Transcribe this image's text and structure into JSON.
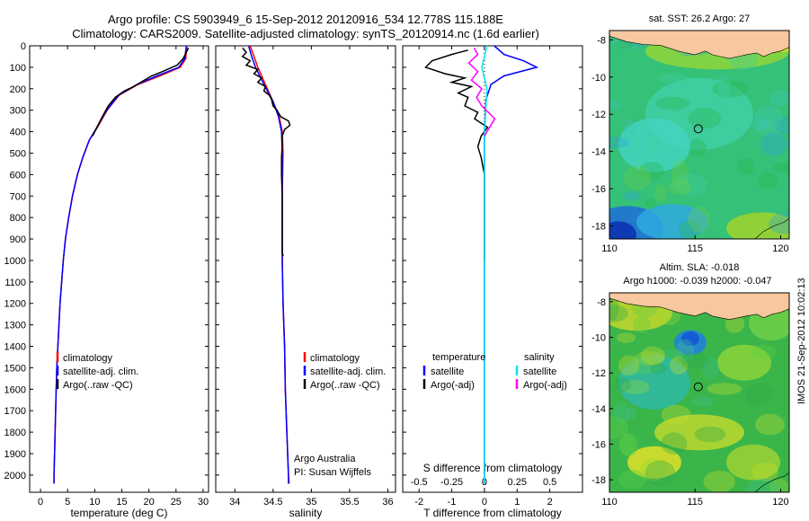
{
  "header": {
    "title_line1": "Argo profile: CS 5903949_6 15-Sep-2012 20120916_534 12.778S 115.188E",
    "title_line2": "Climatology: CARS2009. Satellite-adjusted climatology: synTS_20120914.nc (1.6d earlier)"
  },
  "side_stamp": "IMOS 21-Sep-2012 10:02:13",
  "colors": {
    "climatology": "#ff0000",
    "satellite": "#0000ff",
    "argo": "#000000",
    "sal_satellite": "#00e5ee",
    "sal_argo": "#ff00ff",
    "land": "#f7c79f",
    "sea_mid": "#2db84a"
  },
  "chart_data": [
    {
      "type": "line",
      "name": "temperature-profile",
      "xlabel": "temperature (deg C)",
      "ylabel": "",
      "xlim": [
        -2,
        31
      ],
      "ylim": [
        2080,
        0
      ],
      "xticks": [
        0,
        5,
        10,
        15,
        20,
        25,
        30
      ],
      "yticks": [
        0,
        100,
        200,
        300,
        400,
        500,
        600,
        700,
        800,
        900,
        1000,
        1100,
        1200,
        1300,
        1400,
        1500,
        1600,
        1700,
        1800,
        1900,
        2000
      ],
      "legend": [
        "climatology",
        "satellite-adj. clim.",
        "Argo(..raw -QC)"
      ],
      "legend_position": "lower-left",
      "series": [
        {
          "name": "climatology",
          "color": "#ff0000",
          "points": [
            [
              27,
              0
            ],
            [
              26.8,
              60
            ],
            [
              25.8,
              100
            ],
            [
              22,
              140
            ],
            [
              18,
              180
            ],
            [
              14.5,
              230
            ],
            [
              12.3,
              300
            ],
            [
              10.5,
              380
            ],
            [
              9,
              440
            ],
            [
              7.8,
              520
            ],
            [
              6.8,
              600
            ],
            [
              5.9,
              700
            ],
            [
              5.2,
              800
            ],
            [
              4.6,
              900
            ],
            [
              4.2,
              1000
            ],
            [
              3.9,
              1100
            ],
            [
              3.6,
              1200
            ],
            [
              3.4,
              1300
            ],
            [
              3.2,
              1400
            ],
            [
              3.0,
              1500
            ],
            [
              2.9,
              1600
            ],
            [
              2.8,
              1700
            ],
            [
              2.7,
              1800
            ],
            [
              2.6,
              1900
            ],
            [
              2.5,
              2000
            ],
            [
              2.5,
              2040
            ]
          ]
        },
        {
          "name": "satellite-adj. clim.",
          "color": "#0000ff",
          "points": [
            [
              26.9,
              0
            ],
            [
              26.6,
              60
            ],
            [
              25.5,
              100
            ],
            [
              21.5,
              140
            ],
            [
              17.8,
              180
            ],
            [
              14.4,
              230
            ],
            [
              12.2,
              300
            ],
            [
              10.4,
              380
            ],
            [
              9,
              440
            ],
            [
              7.8,
              520
            ],
            [
              6.8,
              600
            ],
            [
              5.9,
              700
            ],
            [
              5.2,
              800
            ],
            [
              4.6,
              900
            ],
            [
              4.2,
              1000
            ],
            [
              3.9,
              1100
            ],
            [
              3.6,
              1200
            ],
            [
              3.4,
              1300
            ],
            [
              3.2,
              1400
            ],
            [
              3.0,
              1500
            ],
            [
              2.9,
              1600
            ],
            [
              2.8,
              1700
            ],
            [
              2.7,
              1800
            ],
            [
              2.6,
              1900
            ],
            [
              2.5,
              2000
            ],
            [
              2.5,
              2040
            ]
          ]
        },
        {
          "name": "Argo(..raw -QC)",
          "color": "#000000",
          "points": [
            [
              27.3,
              10
            ],
            [
              26.3,
              60
            ],
            [
              25.2,
              90
            ],
            [
              22.5,
              120
            ],
            [
              20.5,
              140
            ],
            [
              18.5,
              170
            ],
            [
              17.2,
              190
            ],
            [
              15.5,
              210
            ],
            [
              13.8,
              240
            ],
            [
              12.5,
              280
            ],
            [
              11.2,
              340
            ],
            [
              10.4,
              380
            ],
            [
              9.6,
              420
            ]
          ]
        }
      ]
    },
    {
      "type": "line",
      "name": "salinity-profile",
      "xlabel": "salinity",
      "xlim": [
        33.75,
        36.1
      ],
      "ylim": [
        2080,
        0
      ],
      "xticks": [
        34,
        34.5,
        35,
        35.5,
        36
      ],
      "legend": [
        "climatology",
        "satellite-adj. clim.",
        "Argo(..raw -QC)"
      ],
      "legend_position": "lower-right",
      "annotations": [
        "Argo Australia",
        "PI: Susan Wijffels"
      ],
      "series": [
        {
          "name": "climatology",
          "color": "#ff0000",
          "points": [
            [
              34.2,
              0
            ],
            [
              34.25,
              50
            ],
            [
              34.3,
              100
            ],
            [
              34.4,
              180
            ],
            [
              34.5,
              260
            ],
            [
              34.58,
              330
            ],
            [
              34.62,
              400
            ],
            [
              34.63,
              500
            ],
            [
              34.62,
              700
            ],
            [
              34.62,
              1000
            ],
            [
              34.63,
              1200
            ],
            [
              34.65,
              1400
            ],
            [
              34.66,
              1600
            ],
            [
              34.68,
              1800
            ],
            [
              34.7,
              2000
            ],
            [
              34.71,
              2040
            ]
          ]
        },
        {
          "name": "satellite-adj. clim.",
          "color": "#0000ff",
          "points": [
            [
              34.18,
              0
            ],
            [
              34.22,
              50
            ],
            [
              34.27,
              100
            ],
            [
              34.38,
              180
            ],
            [
              34.5,
              260
            ],
            [
              34.57,
              330
            ],
            [
              34.61,
              400
            ],
            [
              34.62,
              500
            ],
            [
              34.62,
              700
            ],
            [
              34.62,
              1000
            ],
            [
              34.63,
              1200
            ],
            [
              34.65,
              1400
            ],
            [
              34.66,
              1600
            ],
            [
              34.68,
              1800
            ],
            [
              34.7,
              2000
            ],
            [
              34.7,
              2040
            ]
          ]
        },
        {
          "name": "Argo(..raw -QC)",
          "color": "#000000",
          "points": [
            [
              34.1,
              10
            ],
            [
              34.15,
              30
            ],
            [
              34.1,
              50
            ],
            [
              34.2,
              70
            ],
            [
              34.15,
              90
            ],
            [
              34.3,
              110
            ],
            [
              34.25,
              130
            ],
            [
              34.35,
              150
            ],
            [
              34.3,
              170
            ],
            [
              34.4,
              190
            ],
            [
              34.38,
              210
            ],
            [
              34.45,
              230
            ],
            [
              34.48,
              250
            ],
            [
              34.5,
              280
            ],
            [
              34.55,
              300
            ],
            [
              34.6,
              330
            ],
            [
              34.7,
              350
            ],
            [
              34.72,
              370
            ],
            [
              34.65,
              390
            ],
            [
              34.62,
              420
            ],
            [
              34.62,
              460
            ],
            [
              34.61,
              520
            ],
            [
              34.61,
              600
            ],
            [
              34.62,
              700
            ],
            [
              34.62,
              800
            ],
            [
              34.62,
              900
            ],
            [
              34.62,
              960
            ],
            [
              34.63,
              980
            ]
          ]
        }
      ]
    },
    {
      "type": "line",
      "name": "difference-profile",
      "xlabel": "T difference from climatology",
      "xlabel_top": "S difference from climatology",
      "xlim": [
        -2.5,
        3
      ],
      "ylim": [
        2080,
        0
      ],
      "xticks": [
        -2,
        -1,
        0,
        1,
        2
      ],
      "xticks_top": [
        -0.5,
        -0.25,
        0,
        0.25,
        0.5
      ],
      "legend_temperature": {
        "heading": "temperature",
        "items": [
          "satellite",
          "Argo(-adj)"
        ]
      },
      "legend_salinity": {
        "heading": "salinity",
        "items": [
          "satellite",
          "Argo(-adj)"
        ]
      },
      "series": [
        {
          "name": "temperature satellite",
          "color": "#0000ff",
          "points": [
            [
              0.3,
              0
            ],
            [
              0.6,
              40
            ],
            [
              1.2,
              70
            ],
            [
              1.6,
              100
            ],
            [
              0.6,
              140
            ],
            [
              0.2,
              180
            ],
            [
              0.05,
              250
            ],
            [
              0,
              400
            ],
            [
              0,
              2040
            ]
          ]
        },
        {
          "name": "temperature Argo(-adj)",
          "color": "#000000",
          "points": [
            [
              -0.5,
              20
            ],
            [
              -1.0,
              40
            ],
            [
              -1.6,
              70
            ],
            [
              -1.8,
              100
            ],
            [
              -1.2,
              130
            ],
            [
              -0.6,
              150
            ],
            [
              -1.0,
              170
            ],
            [
              -0.4,
              190
            ],
            [
              -0.8,
              220
            ],
            [
              -0.5,
              240
            ],
            [
              -0.6,
              280
            ],
            [
              -0.2,
              310
            ],
            [
              -0.3,
              340
            ],
            [
              0.1,
              380
            ],
            [
              -0.1,
              420
            ],
            [
              -0.2,
              470
            ],
            [
              -0.1,
              520
            ],
            [
              0,
              600
            ],
            [
              0,
              1000
            ]
          ]
        },
        {
          "name": "salinity satellite",
          "color": "#00e5ee",
          "points": [
            [
              0.02,
              0
            ],
            [
              -0.02,
              100
            ],
            [
              0.02,
              200
            ],
            [
              0,
              400
            ],
            [
              0,
              2040
            ]
          ]
        },
        {
          "name": "salinity Argo(-adj)",
          "color": "#ff00ff",
          "points": [
            [
              -0.08,
              10
            ],
            [
              -0.05,
              40
            ],
            [
              -0.12,
              80
            ],
            [
              -0.05,
              120
            ],
            [
              -0.1,
              160
            ],
            [
              -0.02,
              200
            ],
            [
              -0.06,
              240
            ],
            [
              -0.02,
              280
            ],
            [
              0.03,
              310
            ],
            [
              0.08,
              340
            ],
            [
              0.04,
              380
            ],
            [
              0,
              420
            ]
          ]
        }
      ]
    },
    {
      "type": "heatmap",
      "name": "sst-map",
      "title": "sat. SST: 26.2 Argo: 27",
      "xlim": [
        110,
        120.5
      ],
      "ylim": [
        -18.7,
        -7.5
      ],
      "xticks": [
        110,
        115,
        120
      ],
      "yticks": [
        -8,
        -10,
        -12,
        -14,
        -16,
        -18
      ],
      "marker": {
        "lon": 115.188,
        "lat": -12.778
      }
    },
    {
      "type": "heatmap",
      "name": "sla-map",
      "title_line1": "Altim. SLA: -0.018",
      "title_line2": "Argo h1000: -0.039 h2000: -0.047",
      "xlim": [
        110,
        120.5
      ],
      "ylim": [
        -18.7,
        -7.5
      ],
      "xticks": [
        110,
        115,
        120
      ],
      "yticks": [
        -8,
        -10,
        -12,
        -14,
        -16,
        -18
      ],
      "marker": {
        "lon": 115.188,
        "lat": -12.778
      }
    }
  ]
}
